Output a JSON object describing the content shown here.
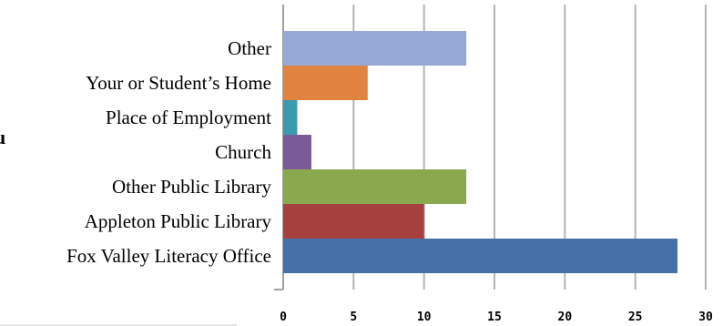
{
  "chart_data": {
    "type": "bar",
    "orientation": "horizontal",
    "categories": [
      "Other",
      "Your or Student’s Home",
      "Place of Employment",
      "Church",
      "Other Public Library",
      "Appleton Public Library",
      "Fox Valley Literacy Office"
    ],
    "values": [
      13,
      6,
      1,
      2,
      13,
      10,
      28
    ],
    "bar_colors": [
      "#94a9d4",
      "#e0833e",
      "#3c9aae",
      "#7a5a97",
      "#8aa84e",
      "#a6403f",
      "#4571a8"
    ],
    "xlim": [
      0,
      30
    ],
    "x_ticks": [
      0,
      5,
      10,
      15,
      20,
      25,
      30
    ],
    "grid": true,
    "title": "",
    "xlabel": "",
    "ylabel": ""
  },
  "stray_glyph": "u"
}
